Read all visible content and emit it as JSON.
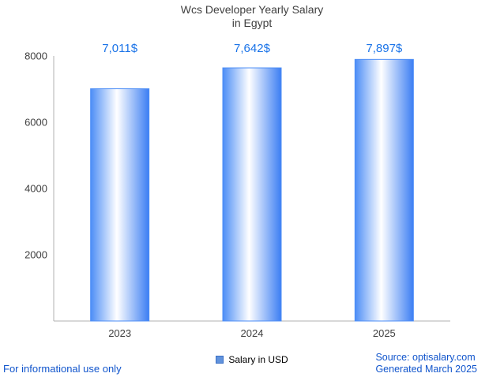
{
  "chart_data": {
    "type": "bar",
    "title": "Wcs Developer Yearly Salary in Egypt",
    "title_lines": [
      "Wcs Developer Yearly Salary",
      "in Egypt"
    ],
    "categories": [
      "2023",
      "2024",
      "2025"
    ],
    "values": [
      7011,
      7642,
      7897
    ],
    "value_labels": [
      "7,011$",
      "7,642$",
      "7,897$"
    ],
    "xlabel": "",
    "ylabel": "",
    "ylim": [
      0,
      8000
    ],
    "yticks": [
      2000,
      4000,
      6000,
      8000
    ],
    "grid": false,
    "legend_position": "bottom",
    "legend_label": "Salary in USD",
    "bar_color": "#4C8DF6",
    "bar_gradient": [
      "#4C8DF6",
      "#FFFFFF",
      "#3C7EF3"
    ],
    "value_label_color": "#1A73E8",
    "axis_color": "#b0b0b0",
    "tick_label_color": "#404040",
    "legend_swatch_color": "#6193dd"
  },
  "footer": {
    "disclaimer": "For informational use only",
    "source": "Source: optisalary.com",
    "generated": "Generated March 2025",
    "link_color": "#1155CC"
  }
}
